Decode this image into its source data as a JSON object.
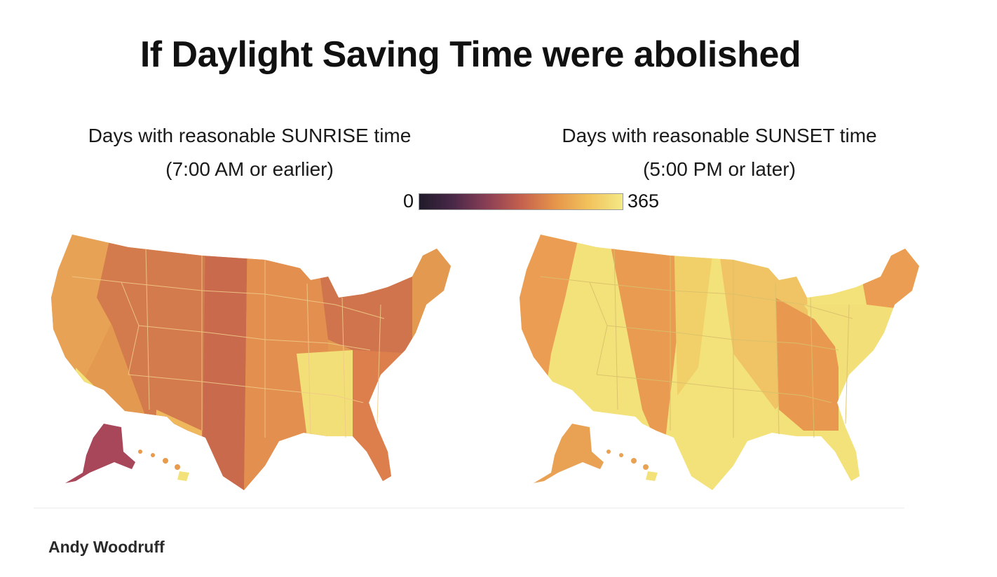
{
  "title": "If Daylight Saving Time were abolished",
  "panels": {
    "sunrise": {
      "title_line1": "Days with reasonable SUNRISE time",
      "title_line2": "(7:00 AM or earlier)"
    },
    "sunset": {
      "title_line1": "Days with reasonable SUNSET time",
      "title_line2": "(5:00 PM or later)"
    }
  },
  "legend": {
    "min_label": "0",
    "max_label": "365",
    "colors": [
      "#1f1b2a",
      "#4a2848",
      "#8a3f55",
      "#c4604e",
      "#e6944a",
      "#f2c25c",
      "#f3ea86"
    ]
  },
  "credit": "Andy Woodruff"
}
